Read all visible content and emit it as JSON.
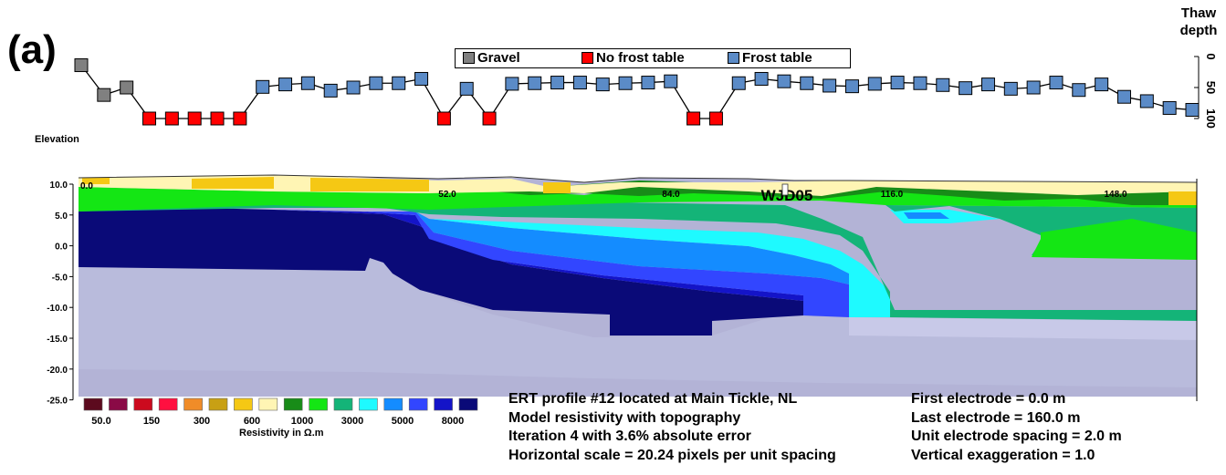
{
  "panel_label": "(a)",
  "thaw_title_line1": "Thaw",
  "thaw_title_line2": "depth",
  "legend": {
    "items": [
      {
        "label": "Gravel",
        "color": "#808080"
      },
      {
        "label": "No frost table",
        "color": "#ff0000"
      },
      {
        "label": "Frost table",
        "color": "#5b8bc7"
      }
    ]
  },
  "thaw_axis_ticks": [
    "0",
    "50",
    "100"
  ],
  "elevation_label": "Elevation",
  "elevation_ticks": [
    "10.0",
    "5.0",
    "0.0",
    "-5.0",
    "-10.0",
    "-15.0",
    "-20.0",
    "-25.0"
  ],
  "distance_ticks": [
    "0.0",
    "52.0",
    "84.0",
    "116.0",
    "148.0"
  ],
  "station_label": "WJD05",
  "colorscale": {
    "colors": [
      "#5c0a1e",
      "#8a0a46",
      "#cc0a1e",
      "#ff1040",
      "#f08c28",
      "#c8a014",
      "#f5c814",
      "#fff5b4",
      "#188c18",
      "#14e614",
      "#14b478",
      "#1efaff",
      "#148cff",
      "#3246ff",
      "#1414c8",
      "#0a0a78"
    ],
    "tick_labels": [
      "50.0",
      "150",
      "300",
      "600",
      "1000",
      "3000",
      "5000",
      "8000"
    ],
    "title": "Resistivity in Ω.m"
  },
  "info_left": [
    "ERT profile #12 located at Main Tickle, NL",
    "Model resistivity with topography",
    "Iteration 4 with 3.6% absolute error",
    "Horizontal scale = 20.24 pixels per unit spacing"
  ],
  "info_right": [
    "First electrode = 0.0 m",
    "Last electrode = 160.0 m",
    "Unit electrode spacing = 2.0 m",
    "Vertical exaggeration = 1.0"
  ],
  "chart_data": {
    "type": "line",
    "ylabel": "Thaw depth",
    "ylim": [
      0,
      100
    ],
    "y_inverted": true,
    "x_label_units": "station",
    "series": [
      {
        "name": "Gravel",
        "points": [
          [
            1,
            14
          ],
          [
            2,
            62
          ],
          [
            3,
            50
          ]
        ]
      },
      {
        "name": "No frost table",
        "points": [
          [
            4,
            100
          ],
          [
            5,
            100
          ],
          [
            6,
            100
          ],
          [
            7,
            100
          ],
          [
            8,
            100
          ],
          [
            17,
            100
          ],
          [
            19,
            100
          ],
          [
            28,
            100
          ],
          [
            29,
            100
          ]
        ]
      },
      {
        "name": "Frost table",
        "points": [
          [
            9,
            49
          ],
          [
            10,
            45
          ],
          [
            11,
            43
          ],
          [
            12,
            55
          ],
          [
            13,
            50
          ],
          [
            14,
            43
          ],
          [
            15,
            43
          ],
          [
            16,
            36
          ],
          [
            18,
            52
          ],
          [
            20,
            44
          ],
          [
            21,
            43
          ],
          [
            22,
            42
          ],
          [
            23,
            42
          ],
          [
            24,
            45
          ],
          [
            25,
            43
          ],
          [
            26,
            42
          ],
          [
            27,
            40
          ],
          [
            30,
            43
          ],
          [
            31,
            36
          ],
          [
            32,
            40
          ],
          [
            33,
            43
          ],
          [
            34,
            47
          ],
          [
            35,
            48
          ],
          [
            36,
            44
          ],
          [
            37,
            42
          ],
          [
            38,
            43
          ],
          [
            39,
            46
          ],
          [
            40,
            51
          ],
          [
            41,
            45
          ],
          [
            42,
            52
          ],
          [
            43,
            50
          ],
          [
            44,
            42
          ],
          [
            45,
            54
          ],
          [
            46,
            45
          ],
          [
            47,
            65
          ],
          [
            48,
            72
          ],
          [
            49,
            83
          ],
          [
            50,
            86
          ]
        ]
      }
    ],
    "profile_line_order": [
      [
        1,
        14
      ],
      [
        2,
        62
      ],
      [
        3,
        50
      ],
      [
        4,
        100
      ],
      [
        5,
        100
      ],
      [
        6,
        100
      ],
      [
        7,
        100
      ],
      [
        8,
        100
      ],
      [
        9,
        49
      ],
      [
        10,
        45
      ],
      [
        11,
        43
      ],
      [
        12,
        55
      ],
      [
        13,
        50
      ],
      [
        14,
        43
      ],
      [
        15,
        43
      ],
      [
        16,
        36
      ],
      [
        17,
        100
      ],
      [
        18,
        52
      ],
      [
        19,
        100
      ],
      [
        20,
        44
      ],
      [
        21,
        43
      ],
      [
        22,
        42
      ],
      [
        23,
        42
      ],
      [
        24,
        45
      ],
      [
        25,
        43
      ],
      [
        26,
        42
      ],
      [
        27,
        40
      ],
      [
        28,
        100
      ],
      [
        29,
        100
      ],
      [
        30,
        43
      ],
      [
        31,
        36
      ],
      [
        32,
        40
      ],
      [
        33,
        43
      ],
      [
        34,
        47
      ],
      [
        35,
        48
      ],
      [
        36,
        44
      ],
      [
        37,
        42
      ],
      [
        38,
        43
      ],
      [
        39,
        46
      ],
      [
        40,
        51
      ],
      [
        41,
        45
      ],
      [
        42,
        52
      ],
      [
        43,
        50
      ],
      [
        44,
        42
      ],
      [
        45,
        54
      ],
      [
        46,
        45
      ],
      [
        47,
        65
      ],
      [
        48,
        72
      ],
      [
        49,
        83
      ],
      [
        50,
        86
      ]
    ],
    "section": {
      "type": "heatmap",
      "xlabel": "",
      "ylabel": "Elevation",
      "x_range_m": [
        0,
        160
      ],
      "y_range_m": [
        -25,
        10
      ],
      "y_ticks": [
        10,
        5,
        0,
        -5,
        -10,
        -15,
        -20,
        -25
      ],
      "x_tick_labels": [
        0,
        52,
        84,
        116,
        148
      ]
    }
  }
}
